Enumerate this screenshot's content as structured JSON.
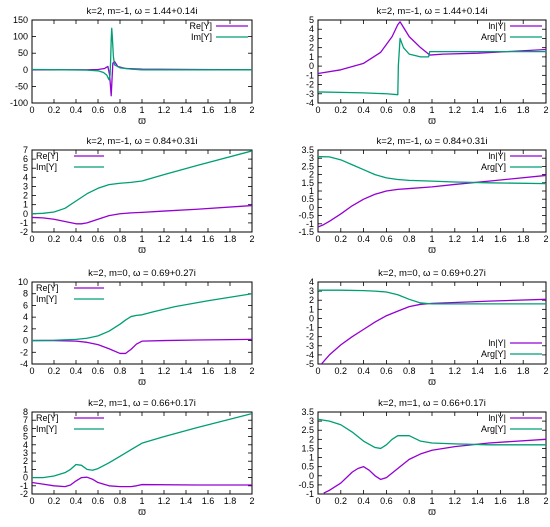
{
  "colors": {
    "re": "#9400d3",
    "im": "#009e73",
    "axis": "#000000"
  },
  "chart_data": [
    {
      "type": "line",
      "title": "k=2, m=-1, ω = 1.44+0.14i",
      "xlabel": "ϖ",
      "xlim": [
        0,
        2
      ],
      "ylim": [
        -100,
        150
      ],
      "xticks": [
        0,
        0.2,
        0.4,
        0.6,
        0.8,
        1,
        1.2,
        1.4,
        1.6,
        1.8,
        2
      ],
      "yticks": [
        -100,
        -50,
        0,
        50,
        100,
        150
      ],
      "legend": "top-right",
      "series": [
        {
          "name": "Re[Y]",
          "color": "#9400d3",
          "x": [
            0,
            0.3,
            0.5,
            0.6,
            0.66,
            0.69,
            0.705,
            0.715,
            0.72,
            0.725,
            0.735,
            0.75,
            0.78,
            0.85,
            1,
            1.5,
            2
          ],
          "y": [
            0,
            0,
            0,
            1,
            4,
            10,
            -15,
            -55,
            -78,
            -45,
            20,
            25,
            10,
            4,
            2,
            1,
            0
          ]
        },
        {
          "name": "Im[Y]",
          "color": "#009e73",
          "x": [
            0,
            0.3,
            0.5,
            0.6,
            0.65,
            0.68,
            0.7,
            0.71,
            0.715,
            0.72,
            0.725,
            0.73,
            0.74,
            0.75,
            0.8,
            0.9,
            1,
            1.5,
            2
          ],
          "y": [
            1,
            0,
            -1,
            -3,
            -8,
            -16,
            -30,
            -15,
            30,
            90,
            125,
            100,
            40,
            15,
            6,
            2,
            0,
            0,
            0
          ]
        }
      ]
    },
    {
      "type": "line",
      "title": "k=2, m=-1, ω = 1.44+0.14i",
      "xlabel": "ϖ",
      "xlim": [
        0,
        2
      ],
      "ylim": [
        -4,
        5
      ],
      "xticks": [
        0,
        0.2,
        0.4,
        0.6,
        0.8,
        1,
        1.2,
        1.4,
        1.6,
        1.8,
        2
      ],
      "yticks": [
        -4,
        -3,
        -2,
        -1,
        0,
        1,
        2,
        3,
        4,
        5
      ],
      "legend": "top-right",
      "series": [
        {
          "name": "ln|Y|",
          "color": "#9400d3",
          "x": [
            0,
            0.2,
            0.4,
            0.55,
            0.65,
            0.7,
            0.72,
            0.75,
            0.8,
            0.9,
            0.98,
            1.1,
            1.4,
            1.7,
            2
          ],
          "y": [
            -0.8,
            -0.4,
            0.3,
            1.5,
            3.2,
            4.5,
            4.8,
            4.2,
            3.2,
            2.0,
            1.2,
            1.3,
            1.4,
            1.6,
            1.8
          ]
        },
        {
          "name": "Arg[Y]",
          "color": "#009e73",
          "x": [
            0,
            0.2,
            0.4,
            0.6,
            0.7,
            0.705,
            0.72,
            0.75,
            0.8,
            0.9,
            0.97,
            0.98,
            1.0,
            1.2,
            1.5,
            1.8,
            2
          ],
          "y": [
            -2.8,
            -2.85,
            -2.9,
            -3.0,
            -3.1,
            0.1,
            3.0,
            2.0,
            1.3,
            1.0,
            1.0,
            1.57,
            1.57,
            1.57,
            1.57,
            1.57,
            1.57
          ]
        }
      ]
    },
    {
      "type": "line",
      "title": "k=2, m=-1, ω = 0.84+0.31i",
      "xlabel": "ϖ",
      "xlim": [
        0,
        2
      ],
      "ylim": [
        -2,
        7
      ],
      "xticks": [
        0,
        0.2,
        0.4,
        0.6,
        0.8,
        1,
        1.2,
        1.4,
        1.6,
        1.8,
        2
      ],
      "yticks": [
        -2,
        -1,
        0,
        1,
        2,
        3,
        4,
        5,
        6,
        7
      ],
      "legend": "top-left",
      "series": [
        {
          "name": "Re[Y]",
          "color": "#9400d3",
          "x": [
            0,
            0.1,
            0.2,
            0.3,
            0.4,
            0.45,
            0.5,
            0.6,
            0.7,
            0.8,
            0.9,
            1.0,
            1.2,
            1.5,
            2
          ],
          "y": [
            -0.4,
            -0.45,
            -0.6,
            -0.85,
            -1.1,
            -1.1,
            -1.0,
            -0.6,
            -0.2,
            0.0,
            0.1,
            0.15,
            0.3,
            0.5,
            0.9
          ]
        },
        {
          "name": "Im[Y]",
          "color": "#009e73",
          "x": [
            0,
            0.1,
            0.2,
            0.3,
            0.4,
            0.5,
            0.6,
            0.7,
            0.8,
            0.9,
            1.0,
            1.2,
            1.5,
            2
          ],
          "y": [
            0.0,
            0.05,
            0.2,
            0.6,
            1.4,
            2.2,
            2.8,
            3.2,
            3.35,
            3.45,
            3.6,
            4.3,
            5.3,
            6.9
          ]
        }
      ]
    },
    {
      "type": "line",
      "title": "k=2, m=-1, ω = 0.84+0.31i",
      "xlabel": "ϖ",
      "xlim": [
        0,
        2
      ],
      "ylim": [
        -1.5,
        3.5
      ],
      "xticks": [
        0,
        0.2,
        0.4,
        0.6,
        0.8,
        1,
        1.2,
        1.4,
        1.6,
        1.8,
        2
      ],
      "yticks": [
        -1.5,
        -1,
        -0.5,
        0,
        0.5,
        1,
        1.5,
        2,
        2.5,
        3,
        3.5
      ],
      "legend": "top-right",
      "series": [
        {
          "name": "ln|Y|",
          "color": "#9400d3",
          "x": [
            0,
            0.05,
            0.1,
            0.2,
            0.3,
            0.4,
            0.5,
            0.6,
            0.7,
            0.8,
            1.0,
            1.2,
            1.5,
            2
          ],
          "y": [
            -1.2,
            -1.05,
            -0.85,
            -0.4,
            0.1,
            0.5,
            0.8,
            1.0,
            1.1,
            1.15,
            1.25,
            1.4,
            1.6,
            1.95
          ]
        },
        {
          "name": "Arg[Y]",
          "color": "#009e73",
          "x": [
            0,
            0.1,
            0.2,
            0.3,
            0.4,
            0.5,
            0.6,
            0.7,
            0.8,
            1.0,
            1.2,
            1.5,
            2
          ],
          "y": [
            3.1,
            3.08,
            2.9,
            2.6,
            2.3,
            2.0,
            1.8,
            1.7,
            1.65,
            1.6,
            1.55,
            1.5,
            1.45
          ]
        }
      ]
    },
    {
      "type": "line",
      "title": "k=2, m=0, ω = 0.69+0.27i",
      "xlabel": "ϖ",
      "xlim": [
        0,
        2
      ],
      "ylim": [
        -4,
        10
      ],
      "xticks": [
        0,
        0.2,
        0.4,
        0.6,
        0.8,
        1,
        1.2,
        1.4,
        1.6,
        1.8,
        2
      ],
      "yticks": [
        -4,
        -2,
        0,
        2,
        4,
        6,
        8,
        10
      ],
      "legend": "top-left",
      "series": [
        {
          "name": "Re[Y]",
          "color": "#9400d3",
          "x": [
            0,
            0.2,
            0.4,
            0.5,
            0.6,
            0.7,
            0.8,
            0.85,
            0.9,
            0.95,
            1.0,
            1.2,
            1.5,
            2
          ],
          "y": [
            0,
            0,
            -0.1,
            -0.3,
            -0.7,
            -1.4,
            -2.2,
            -2.2,
            -1.5,
            -0.6,
            -0.1,
            0.0,
            0.1,
            0.2
          ]
        },
        {
          "name": "Im[Y]",
          "color": "#009e73",
          "x": [
            0,
            0.2,
            0.4,
            0.5,
            0.6,
            0.7,
            0.8,
            0.85,
            0.9,
            0.95,
            1.0,
            1.1,
            1.3,
            1.6,
            2
          ],
          "y": [
            0,
            0.05,
            0.2,
            0.4,
            0.8,
            1.6,
            2.8,
            3.5,
            4.1,
            4.3,
            4.4,
            4.9,
            5.8,
            6.8,
            8.0
          ]
        }
      ]
    },
    {
      "type": "line",
      "title": "k=2, m=0, ω = 0.69+0.27i",
      "xlabel": "ϖ",
      "xlim": [
        0,
        2
      ],
      "ylim": [
        -5,
        4
      ],
      "xticks": [
        0,
        0.2,
        0.4,
        0.6,
        0.8,
        1,
        1.2,
        1.4,
        1.6,
        1.8,
        2
      ],
      "yticks": [
        -5,
        -4,
        -3,
        -2,
        -1,
        0,
        1,
        2,
        3,
        4
      ],
      "legend": "bottom-right",
      "series": [
        {
          "name": "ln|Y|",
          "color": "#9400d3",
          "x": [
            0.03,
            0.1,
            0.2,
            0.3,
            0.4,
            0.5,
            0.6,
            0.7,
            0.8,
            0.9,
            1.0,
            1.2,
            1.5,
            2
          ],
          "y": [
            -5.0,
            -4.0,
            -2.9,
            -2.0,
            -1.2,
            -0.4,
            0.3,
            0.8,
            1.3,
            1.55,
            1.65,
            1.75,
            1.9,
            2.1
          ]
        },
        {
          "name": "Arg[Y]",
          "color": "#009e73",
          "x": [
            0,
            0.2,
            0.4,
            0.5,
            0.6,
            0.7,
            0.8,
            0.9,
            1.0,
            1.2,
            1.5,
            2
          ],
          "y": [
            3.1,
            3.1,
            3.05,
            3.0,
            2.9,
            2.6,
            2.1,
            1.7,
            1.6,
            1.6,
            1.6,
            1.6
          ]
        }
      ]
    },
    {
      "type": "line",
      "title": "k=2, m=1, ω = 0.66+0.17i",
      "xlabel": "ϖ",
      "xlim": [
        0,
        2
      ],
      "ylim": [
        -2,
        8
      ],
      "xticks": [
        0,
        0.2,
        0.4,
        0.6,
        0.8,
        1,
        1.2,
        1.4,
        1.6,
        1.8,
        2
      ],
      "yticks": [
        -2,
        -1,
        0,
        1,
        2,
        3,
        4,
        5,
        6,
        7,
        8
      ],
      "legend": "top-left",
      "series": [
        {
          "name": "Re[Y]",
          "color": "#9400d3",
          "x": [
            0,
            0.1,
            0.2,
            0.3,
            0.35,
            0.4,
            0.45,
            0.5,
            0.55,
            0.6,
            0.7,
            0.8,
            0.9,
            0.95,
            1.0,
            1.5,
            2
          ],
          "y": [
            -0.6,
            -0.8,
            -1.0,
            -1.1,
            -0.9,
            -0.4,
            0.0,
            0.05,
            -0.2,
            -0.6,
            -1.0,
            -1.1,
            -1.1,
            -1.0,
            -0.85,
            -0.9,
            -0.9
          ]
        },
        {
          "name": "Im[Y]",
          "color": "#009e73",
          "x": [
            0,
            0.1,
            0.2,
            0.3,
            0.35,
            0.4,
            0.45,
            0.5,
            0.55,
            0.6,
            0.7,
            0.8,
            0.9,
            1.0,
            1.2,
            1.5,
            2
          ],
          "y": [
            0.0,
            0.0,
            0.2,
            0.6,
            1.0,
            1.6,
            1.5,
            1.0,
            0.9,
            1.1,
            1.8,
            2.6,
            3.4,
            4.2,
            5.0,
            6.1,
            7.8
          ]
        }
      ]
    },
    {
      "type": "line",
      "title": "k=2, m=1, ω = 0.66+0.17i",
      "xlabel": "ϖ",
      "xlim": [
        0,
        2
      ],
      "ylim": [
        -1,
        3.5
      ],
      "xticks": [
        0,
        0.2,
        0.4,
        0.6,
        0.8,
        1,
        1.2,
        1.4,
        1.6,
        1.8,
        2
      ],
      "yticks": [
        -1,
        -0.5,
        0,
        0.5,
        1,
        1.5,
        2,
        2.5,
        3,
        3.5
      ],
      "legend": "top-right",
      "series": [
        {
          "name": "ln|Y|",
          "color": "#9400d3",
          "x": [
            0.05,
            0.1,
            0.2,
            0.3,
            0.35,
            0.4,
            0.45,
            0.5,
            0.55,
            0.6,
            0.7,
            0.8,
            0.9,
            1.0,
            1.2,
            1.5,
            2
          ],
          "y": [
            -0.95,
            -0.8,
            -0.4,
            0.2,
            0.4,
            0.5,
            0.3,
            0.0,
            -0.2,
            -0.1,
            0.4,
            0.9,
            1.2,
            1.4,
            1.6,
            1.8,
            2.0
          ]
        },
        {
          "name": "Arg[Y]",
          "color": "#009e73",
          "x": [
            0,
            0.1,
            0.2,
            0.3,
            0.4,
            0.5,
            0.55,
            0.6,
            0.65,
            0.7,
            0.8,
            0.9,
            1.0,
            1.2,
            1.5,
            2
          ],
          "y": [
            3.1,
            3.0,
            2.8,
            2.4,
            1.9,
            1.55,
            1.5,
            1.7,
            2.0,
            2.2,
            2.2,
            1.9,
            1.8,
            1.75,
            1.7,
            1.7
          ]
        }
      ]
    }
  ]
}
